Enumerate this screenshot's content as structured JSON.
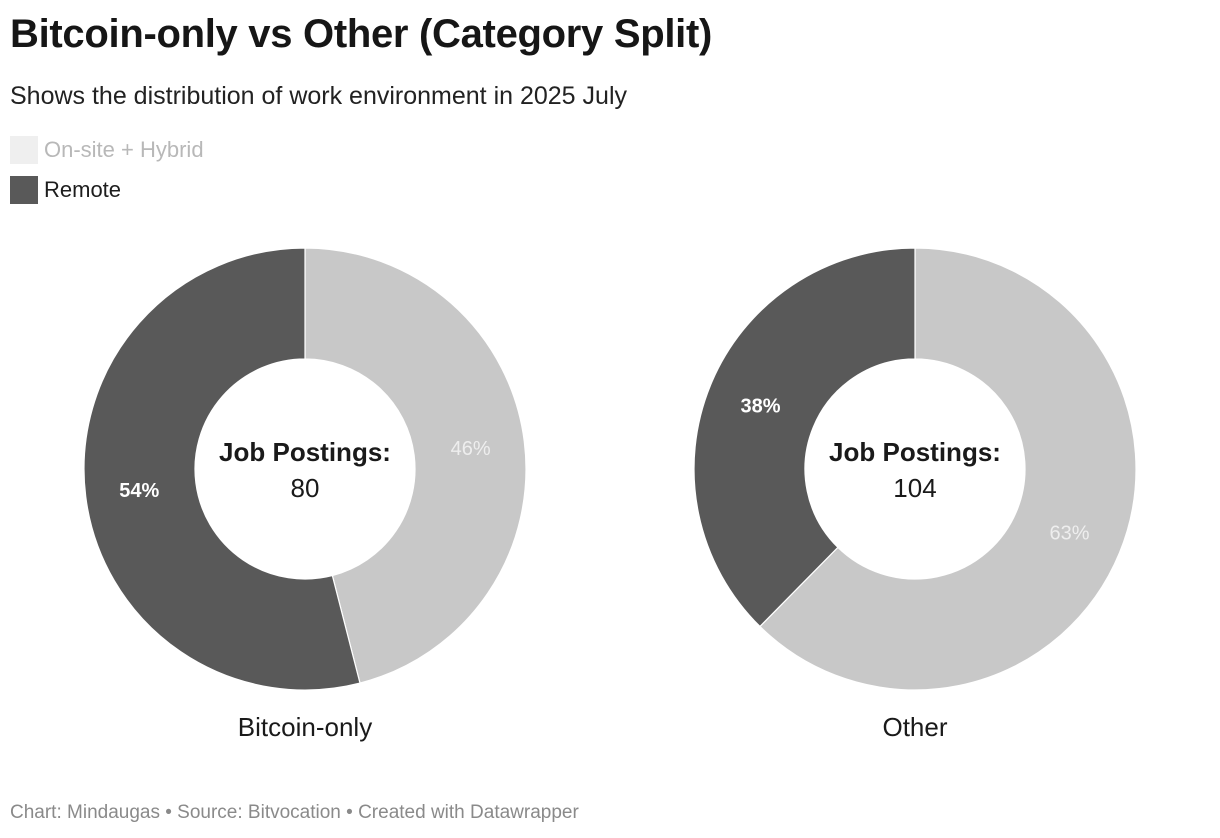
{
  "title": "Bitcoin-only vs Other (Category Split)",
  "subtitle": "Shows the distribution of work environment in 2025 July",
  "colors": {
    "onsite_hybrid": "#c8c8c8",
    "remote": "#595959",
    "legend_onsite_hybrid": "#e2e2e2"
  },
  "legend": [
    {
      "label": "On-site + Hybrid",
      "color": "#e2e2e2"
    },
    {
      "label": "Remote",
      "color": "#595959"
    }
  ],
  "chart_data": [
    {
      "type": "pie",
      "name": "Bitcoin-only",
      "center_label": "Job Postings:",
      "center_value": "80",
      "slices": [
        {
          "label": "On-site + Hybrid",
          "value": 46,
          "display": "46%",
          "color": "#c8c8c8"
        },
        {
          "label": "Remote",
          "value": 54,
          "display": "54%",
          "color": "#595959"
        }
      ]
    },
    {
      "type": "pie",
      "name": "Other",
      "center_label": "Job Postings:",
      "center_value": "104",
      "slices": [
        {
          "label": "On-site + Hybrid",
          "value": 63,
          "display": "63%",
          "color": "#c8c8c8"
        },
        {
          "label": "Remote",
          "value": 38,
          "display": "38%",
          "color": "#595959"
        }
      ]
    }
  ],
  "footer": "Chart: Mindaugas • Source: Bitvocation • Created with Datawrapper"
}
